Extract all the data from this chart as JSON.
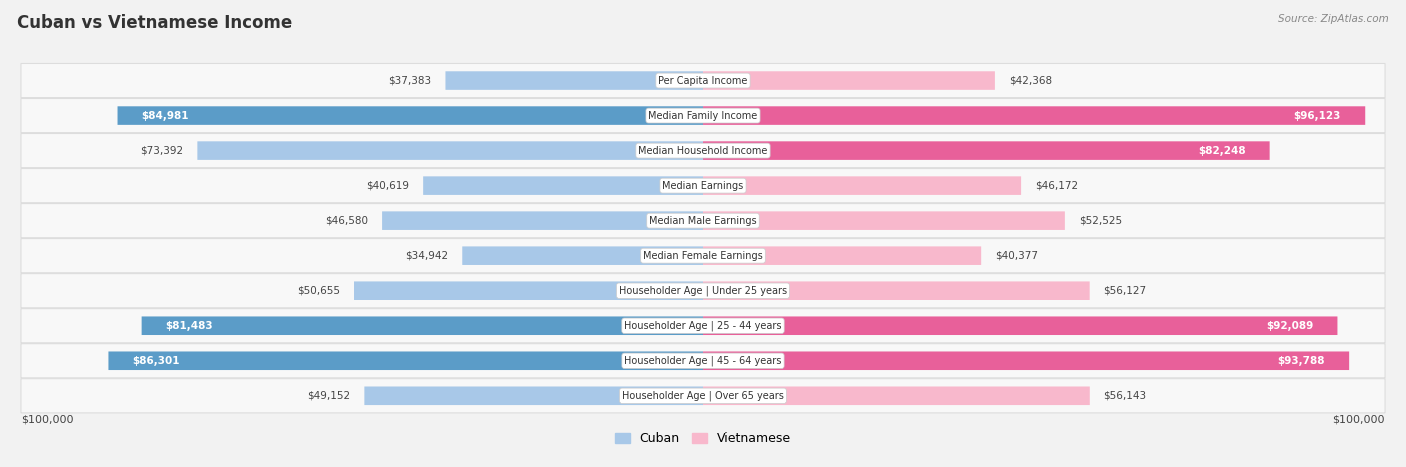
{
  "title": "Cuban vs Vietnamese Income",
  "source": "Source: ZipAtlas.com",
  "categories": [
    "Per Capita Income",
    "Median Family Income",
    "Median Household Income",
    "Median Earnings",
    "Median Male Earnings",
    "Median Female Earnings",
    "Householder Age | Under 25 years",
    "Householder Age | 25 - 44 years",
    "Householder Age | 45 - 64 years",
    "Householder Age | Over 65 years"
  ],
  "cuban_values": [
    37383,
    84981,
    73392,
    40619,
    46580,
    34942,
    50655,
    81483,
    86301,
    49152
  ],
  "vietnamese_values": [
    42368,
    96123,
    82248,
    46172,
    52525,
    40377,
    56127,
    92089,
    93788,
    56143
  ],
  "cuban_labels": [
    "$37,383",
    "$84,981",
    "$73,392",
    "$40,619",
    "$46,580",
    "$34,942",
    "$50,655",
    "$81,483",
    "$86,301",
    "$49,152"
  ],
  "vietnamese_labels": [
    "$42,368",
    "$96,123",
    "$82,248",
    "$46,172",
    "$52,525",
    "$40,377",
    "$56,127",
    "$92,089",
    "$93,788",
    "$56,143"
  ],
  "cuban_color_light": "#a8c8e8",
  "cuban_color_dark": "#5b9cc8",
  "vietnamese_color_light": "#f8b8cc",
  "vietnamese_color_dark": "#e8609a",
  "dark_threshold": 75000,
  "max_value": 100000,
  "xlabel_left": "$100,000",
  "xlabel_right": "$100,000",
  "legend_cuban": "Cuban",
  "legend_vietnamese": "Vietnamese",
  "bg_color": "#f2f2f2",
  "row_bg": "#f8f8f8",
  "row_border": "#dddddd",
  "title_fontsize": 12,
  "cat_fontsize": 7,
  "value_fontsize": 7.5,
  "axis_fontsize": 8
}
